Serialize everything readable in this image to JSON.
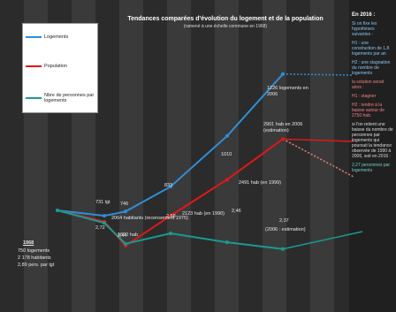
{
  "chart_data": {
    "type": "line",
    "title": "Tendances comparées  d'évolution du logement et de la population",
    "subtitle": "(ramené à une échelle commune en 1968)",
    "categories": [
      null,
      null,
      null,
      null,
      null,
      null
    ],
    "series": [
      {
        "name": "Logements",
        "color": "#2f8fd8",
        "values": [
          750,
          731,
          746,
          833,
          1010,
          1226
        ],
        "value_labels": [
          "750 logements",
          "731 lgt",
          "746",
          "833",
          "1010",
          "1226 logements en 2006"
        ]
      },
      {
        "name": "Population",
        "color": "#e01818",
        "values": [
          2178,
          2064,
          1820,
          2123,
          2491,
          2901
        ],
        "value_labels": [
          "2 178 habitants",
          "2064 habitants (recensement 1975)",
          "1820 hab",
          "2123 hab (en 1990)",
          "2491 hab (en 1999)",
          "2901 hab en 2006 (estimation)"
        ]
      },
      {
        "name": "Nbre de personnes par logements",
        "color": "#1a9a90",
        "values": [
          2.89,
          2.72,
          2.44,
          2.58,
          2.46,
          2.37
        ],
        "value_labels": [
          "2,89 pers. par lgt",
          "2,72",
          "2,44",
          "2,58",
          "2,46",
          "2,37"
        ]
      }
    ],
    "annotations": [
      "1968",
      "(2006 : estimation)"
    ]
  },
  "side_panel": {
    "title": "En 2016 :",
    "paragraphs": [
      "Si on fixe les hypothèses suivantes :",
      "H1 : une construction de 1,8 logements par an",
      "H2 : une stagnation du nombre de logements",
      "la solution serait alors :",
      "H1 : stagner",
      "H2 : tendre à la baisse autour de 2750 hab.",
      "si l'on retient une baisse du nombre de personnes par logements qui poursuit la tendance observée de 1990 à 2006, soit en 2016 :",
      "2,27 personnes par logements"
    ]
  }
}
